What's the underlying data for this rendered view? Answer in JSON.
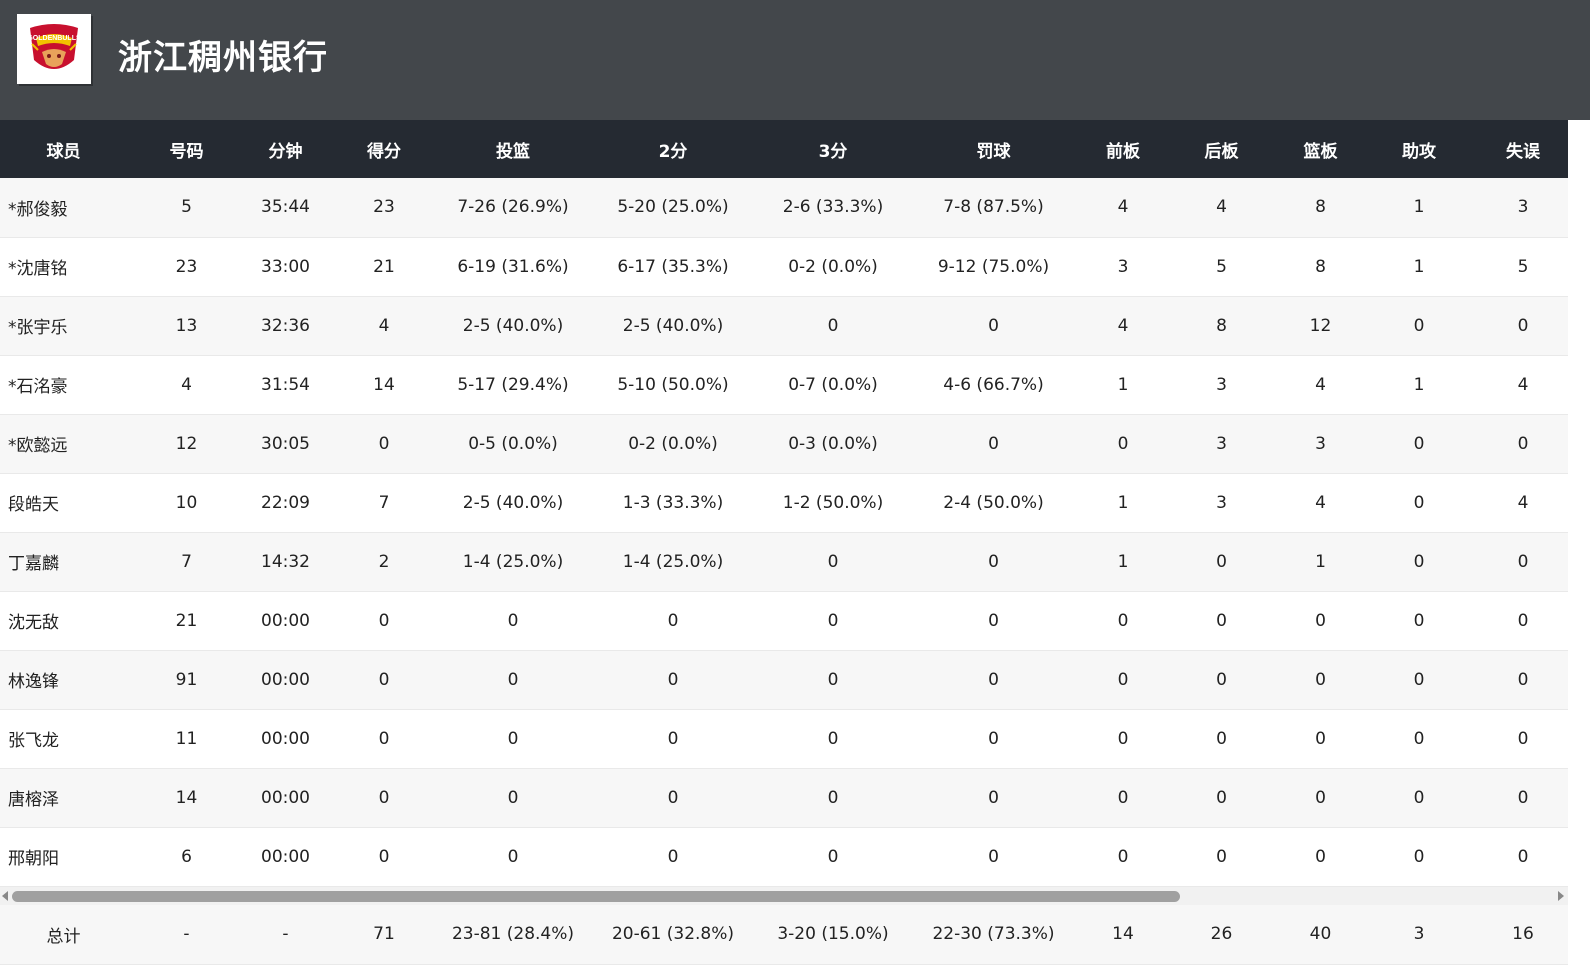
{
  "team": {
    "name": "浙江稠州银行",
    "logo_text": "GOLDENBULLS"
  },
  "columns": [
    "球员",
    "号码",
    "分钟",
    "得分",
    "投篮",
    "2分",
    "3分",
    "罚球",
    "前板",
    "后板",
    "篮板",
    "助攻",
    "失误"
  ],
  "players": [
    {
      "name": "*郝俊毅",
      "no": "5",
      "min": "35:44",
      "pts": "23",
      "fg": "7-26 (26.9%)",
      "p2": "5-20 (25.0%)",
      "p3": "2-6 (33.3%)",
      "ft": "7-8 (87.5%)",
      "oreb": "4",
      "dreb": "4",
      "reb": "8",
      "ast": "1",
      "to": "3"
    },
    {
      "name": "*沈唐铭",
      "no": "23",
      "min": "33:00",
      "pts": "21",
      "fg": "6-19 (31.6%)",
      "p2": "6-17 (35.3%)",
      "p3": "0-2 (0.0%)",
      "ft": "9-12 (75.0%)",
      "oreb": "3",
      "dreb": "5",
      "reb": "8",
      "ast": "1",
      "to": "5"
    },
    {
      "name": "*张宇乐",
      "no": "13",
      "min": "32:36",
      "pts": "4",
      "fg": "2-5 (40.0%)",
      "p2": "2-5 (40.0%)",
      "p3": "0",
      "ft": "0",
      "oreb": "4",
      "dreb": "8",
      "reb": "12",
      "ast": "0",
      "to": "0"
    },
    {
      "name": "*石洺豪",
      "no": "4",
      "min": "31:54",
      "pts": "14",
      "fg": "5-17 (29.4%)",
      "p2": "5-10 (50.0%)",
      "p3": "0-7 (0.0%)",
      "ft": "4-6 (66.7%)",
      "oreb": "1",
      "dreb": "3",
      "reb": "4",
      "ast": "1",
      "to": "4"
    },
    {
      "name": "*欧懿远",
      "no": "12",
      "min": "30:05",
      "pts": "0",
      "fg": "0-5 (0.0%)",
      "p2": "0-2 (0.0%)",
      "p3": "0-3 (0.0%)",
      "ft": "0",
      "oreb": "0",
      "dreb": "3",
      "reb": "3",
      "ast": "0",
      "to": "0"
    },
    {
      "name": "段皓天",
      "no": "10",
      "min": "22:09",
      "pts": "7",
      "fg": "2-5 (40.0%)",
      "p2": "1-3 (33.3%)",
      "p3": "1-2 (50.0%)",
      "ft": "2-4 (50.0%)",
      "oreb": "1",
      "dreb": "3",
      "reb": "4",
      "ast": "0",
      "to": "4"
    },
    {
      "name": "丁嘉麟",
      "no": "7",
      "min": "14:32",
      "pts": "2",
      "fg": "1-4 (25.0%)",
      "p2": "1-4 (25.0%)",
      "p3": "0",
      "ft": "0",
      "oreb": "1",
      "dreb": "0",
      "reb": "1",
      "ast": "0",
      "to": "0"
    },
    {
      "name": "沈无敌",
      "no": "21",
      "min": "00:00",
      "pts": "0",
      "fg": "0",
      "p2": "0",
      "p3": "0",
      "ft": "0",
      "oreb": "0",
      "dreb": "0",
      "reb": "0",
      "ast": "0",
      "to": "0"
    },
    {
      "name": "林逸锋",
      "no": "91",
      "min": "00:00",
      "pts": "0",
      "fg": "0",
      "p2": "0",
      "p3": "0",
      "ft": "0",
      "oreb": "0",
      "dreb": "0",
      "reb": "0",
      "ast": "0",
      "to": "0"
    },
    {
      "name": "张飞龙",
      "no": "11",
      "min": "00:00",
      "pts": "0",
      "fg": "0",
      "p2": "0",
      "p3": "0",
      "ft": "0",
      "oreb": "0",
      "dreb": "0",
      "reb": "0",
      "ast": "0",
      "to": "0"
    },
    {
      "name": "唐榕泽",
      "no": "14",
      "min": "00:00",
      "pts": "0",
      "fg": "0",
      "p2": "0",
      "p3": "0",
      "ft": "0",
      "oreb": "0",
      "dreb": "0",
      "reb": "0",
      "ast": "0",
      "to": "0"
    },
    {
      "name": "邢朝阳",
      "no": "6",
      "min": "00:00",
      "pts": "0",
      "fg": "0",
      "p2": "0",
      "p3": "0",
      "ft": "0",
      "oreb": "0",
      "dreb": "0",
      "reb": "0",
      "ast": "0",
      "to": "0"
    }
  ],
  "totals": {
    "name": "总计",
    "no": "-",
    "min": "-",
    "pts": "71",
    "fg": "23-81 (28.4%)",
    "p2": "20-61 (32.8%)",
    "p3": "3-20 (15.0%)",
    "ft": "22-30 (73.3%)",
    "oreb": "14",
    "dreb": "26",
    "reb": "40",
    "ast": "3",
    "to": "16"
  },
  "colors": {
    "header_bg": "#43474b",
    "table_header_bg": "#252a32",
    "logo_red": "#c8102e"
  }
}
